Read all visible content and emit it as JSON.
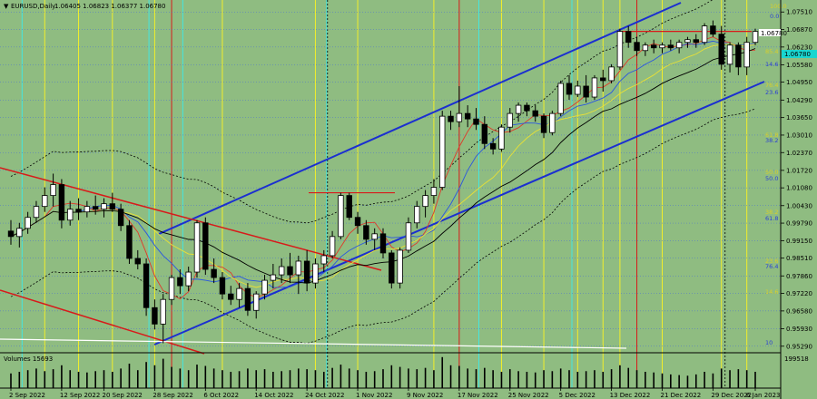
{
  "header": {
    "symbol_tf": "EURUSD,Daily",
    "ohlc": "1.06405 1.06823 1.06377 1.06780"
  },
  "volume_label": "Volumes 15693",
  "volume_max_label": "199518",
  "current_price": "1.06780",
  "price_levels": [
    "1.07510",
    "1.06870",
    "1.06230",
    "1.05580",
    "1.04950",
    "1.04290",
    "1.03650",
    "1.03010",
    "1.02370",
    "1.01720",
    "1.01080",
    "1.00430",
    "0.99790",
    "0.99150",
    "0.98510",
    "0.97860",
    "0.97220",
    "0.96580",
    "0.95930",
    "0.95290"
  ],
  "date_labels": [
    "2 Sep 2022",
    "12 Sep 2022",
    "20 Sep 2022",
    "28 Sep 2022",
    "6 Oct 2022",
    "14 Oct 2022",
    "24 Oct 2022",
    "1 Nov 2022",
    "9 Nov 2022",
    "17 Nov 2022",
    "25 Nov 2022",
    "5 Dec 2022",
    "13 Dec 2022",
    "21 Dec 2022",
    "29 Dec 2022",
    "6 Jan 2023"
  ],
  "fibo_labels": [
    "100.0",
    "0.0",
    "85.4",
    "14.6",
    "76.4",
    "23.6",
    "61.8",
    "38.2",
    "50.0",
    "50.0",
    "38.2",
    "61.8",
    "23.6",
    "76.4",
    "14.6",
    "10"
  ],
  "colors": {
    "background": "#8fbc81",
    "bull": "#ffffff",
    "bear": "#000000",
    "channel_blue": "#1b2fd0",
    "channel_red": "#d81a1a",
    "vline_yellow": "#f2ee2a",
    "vline_cyan": "#44e6e0",
    "vline_red": "#d81a1a",
    "ma_red": "#e0392a",
    "ma_blue": "#2a56e0",
    "ma_yellow": "#e8e036",
    "current_price_bg": "#19d6d0"
  },
  "chart_data": {
    "type": "candlestick",
    "y_range": [
      0.9515,
      1.0775
    ],
    "price_ticks": [
      1.0751,
      1.0687,
      1.0623,
      1.0558,
      1.0495,
      1.0429,
      1.0365,
      1.0301,
      1.0237,
      1.0172,
      1.0108,
      1.0043,
      0.9979,
      0.9915,
      0.9851,
      0.9786,
      0.9722,
      0.9658,
      0.9593,
      0.9529
    ],
    "candles": [
      [
        0.995,
        0.999,
        0.99,
        0.993
      ],
      [
        0.993,
        0.998,
        0.989,
        0.996
      ],
      [
        0.996,
        1.002,
        0.994,
        1.0
      ],
      [
        1.0,
        1.006,
        0.998,
        1.004
      ],
      [
        1.004,
        1.011,
        1.002,
        1.008
      ],
      [
        1.008,
        1.016,
        1.004,
        1.012
      ],
      [
        1.012,
        1.014,
        0.996,
        0.999
      ],
      [
        0.999,
        1.006,
        0.997,
        1.003
      ],
      [
        1.003,
        1.007,
        0.999,
        1.002
      ],
      [
        1.002,
        1.006,
        1.0,
        1.004
      ],
      [
        1.004,
        1.008,
        1.001,
        1.003
      ],
      [
        1.003,
        1.007,
        1.0,
        1.005
      ],
      [
        1.005,
        1.009,
        1.002,
        1.003
      ],
      [
        1.003,
        1.005,
        0.995,
        0.997
      ],
      [
        0.997,
        0.999,
        0.983,
        0.985
      ],
      [
        0.985,
        0.988,
        0.981,
        0.983
      ],
      [
        0.983,
        0.985,
        0.964,
        0.967
      ],
      [
        0.967,
        0.97,
        0.959,
        0.961
      ],
      [
        0.961,
        0.972,
        0.954,
        0.97
      ],
      [
        0.97,
        0.979,
        0.968,
        0.978
      ],
      [
        0.978,
        0.981,
        0.972,
        0.975
      ],
      [
        0.975,
        0.982,
        0.973,
        0.98
      ],
      [
        0.98,
        0.999,
        0.978,
        0.998
      ],
      [
        0.998,
        1.0,
        0.979,
        0.981
      ],
      [
        0.981,
        0.985,
        0.976,
        0.978
      ],
      [
        0.978,
        0.98,
        0.97,
        0.972
      ],
      [
        0.972,
        0.975,
        0.968,
        0.97
      ],
      [
        0.97,
        0.976,
        0.967,
        0.974
      ],
      [
        0.974,
        0.976,
        0.964,
        0.966
      ],
      [
        0.966,
        0.973,
        0.963,
        0.972
      ],
      [
        0.972,
        0.979,
        0.97,
        0.977
      ],
      [
        0.977,
        0.983,
        0.974,
        0.979
      ],
      [
        0.979,
        0.985,
        0.976,
        0.982
      ],
      [
        0.982,
        0.987,
        0.976,
        0.979
      ],
      [
        0.979,
        0.986,
        0.972,
        0.984
      ],
      [
        0.984,
        0.988,
        0.973,
        0.976
      ],
      [
        0.976,
        0.985,
        0.974,
        0.983
      ],
      [
        0.983,
        0.988,
        0.98,
        0.986
      ],
      [
        0.986,
        0.995,
        0.985,
        0.993
      ],
      [
        0.993,
        1.009,
        0.992,
        1.008
      ],
      [
        1.008,
        1.009,
        0.999,
        1.0
      ],
      [
        1.0,
        1.002,
        0.994,
        0.997
      ],
      [
        0.997,
        0.999,
        0.99,
        0.992
      ],
      [
        0.992,
        0.996,
        0.988,
        0.994
      ],
      [
        0.994,
        0.996,
        0.985,
        0.987
      ],
      [
        0.987,
        0.988,
        0.974,
        0.976
      ],
      [
        0.976,
        0.989,
        0.974,
        0.988
      ],
      [
        0.988,
        1.0,
        0.987,
        0.998
      ],
      [
        0.998,
        1.006,
        0.996,
        1.004
      ],
      [
        1.004,
        1.01,
        1.0,
        1.008
      ],
      [
        1.008,
        1.014,
        1.005,
        1.011
      ],
      [
        1.011,
        1.039,
        1.01,
        1.037
      ],
      [
        1.037,
        1.039,
        1.032,
        1.035
      ],
      [
        1.035,
        1.048,
        1.033,
        1.038
      ],
      [
        1.038,
        1.041,
        1.033,
        1.036
      ],
      [
        1.036,
        1.04,
        1.032,
        1.034
      ],
      [
        1.034,
        1.037,
        1.025,
        1.027
      ],
      [
        1.027,
        1.029,
        1.023,
        1.025
      ],
      [
        1.025,
        1.034,
        1.024,
        1.033
      ],
      [
        1.033,
        1.04,
        1.031,
        1.038
      ],
      [
        1.038,
        1.042,
        1.035,
        1.041
      ],
      [
        1.041,
        1.042,
        1.037,
        1.039
      ],
      [
        1.039,
        1.041,
        1.035,
        1.037
      ],
      [
        1.037,
        1.038,
        1.029,
        1.031
      ],
      [
        1.031,
        1.039,
        1.03,
        1.038
      ],
      [
        1.038,
        1.05,
        1.037,
        1.049
      ],
      [
        1.049,
        1.052,
        1.043,
        1.045
      ],
      [
        1.045,
        1.05,
        1.044,
        1.048
      ],
      [
        1.048,
        1.052,
        1.042,
        1.044
      ],
      [
        1.044,
        1.052,
        1.043,
        1.051
      ],
      [
        1.051,
        1.054,
        1.046,
        1.05
      ],
      [
        1.05,
        1.056,
        1.049,
        1.055
      ],
      [
        1.055,
        1.069,
        1.054,
        1.068
      ],
      [
        1.068,
        1.07,
        1.062,
        1.064
      ],
      [
        1.064,
        1.066,
        1.059,
        1.061
      ],
      [
        1.061,
        1.064,
        1.059,
        1.063
      ],
      [
        1.063,
        1.065,
        1.06,
        1.062
      ],
      [
        1.062,
        1.064,
        1.06,
        1.063
      ],
      [
        1.063,
        1.065,
        1.061,
        1.062
      ],
      [
        1.062,
        1.065,
        1.06,
        1.064
      ],
      [
        1.064,
        1.066,
        1.062,
        1.065
      ],
      [
        1.065,
        1.067,
        1.062,
        1.064
      ],
      [
        1.064,
        1.071,
        1.063,
        1.07
      ],
      [
        1.07,
        1.072,
        1.066,
        1.067
      ],
      [
        1.067,
        1.07,
        1.054,
        1.056
      ],
      [
        1.056,
        1.064,
        1.053,
        1.063
      ],
      [
        1.063,
        1.064,
        1.052,
        1.055
      ],
      [
        1.055,
        1.066,
        1.052,
        1.064
      ],
      [
        1.064,
        1.069,
        1.063,
        1.068
      ]
    ],
    "volumes": [
      0.45,
      0.5,
      0.55,
      0.6,
      0.52,
      0.58,
      0.7,
      0.55,
      0.5,
      0.48,
      0.52,
      0.55,
      0.5,
      0.6,
      0.75,
      0.55,
      0.8,
      0.7,
      0.9,
      0.65,
      0.6,
      0.55,
      0.72,
      0.68,
      0.6,
      0.55,
      0.5,
      0.52,
      0.6,
      0.55,
      0.58,
      0.5,
      0.52,
      0.55,
      0.6,
      0.58,
      0.55,
      0.5,
      0.62,
      0.72,
      0.6,
      0.55,
      0.5,
      0.52,
      0.58,
      0.7,
      0.65,
      0.6,
      0.58,
      0.62,
      0.55,
      0.95,
      0.7,
      0.68,
      0.6,
      0.58,
      0.62,
      0.55,
      0.5,
      0.58,
      0.52,
      0.5,
      0.48,
      0.55,
      0.52,
      0.6,
      0.55,
      0.5,
      0.52,
      0.55,
      0.5,
      0.58,
      0.7,
      0.62,
      0.55,
      0.5,
      0.48,
      0.45,
      0.42,
      0.4,
      0.38,
      0.42,
      0.5,
      0.45,
      0.6,
      0.55,
      0.58,
      0.55,
      0.5
    ]
  }
}
